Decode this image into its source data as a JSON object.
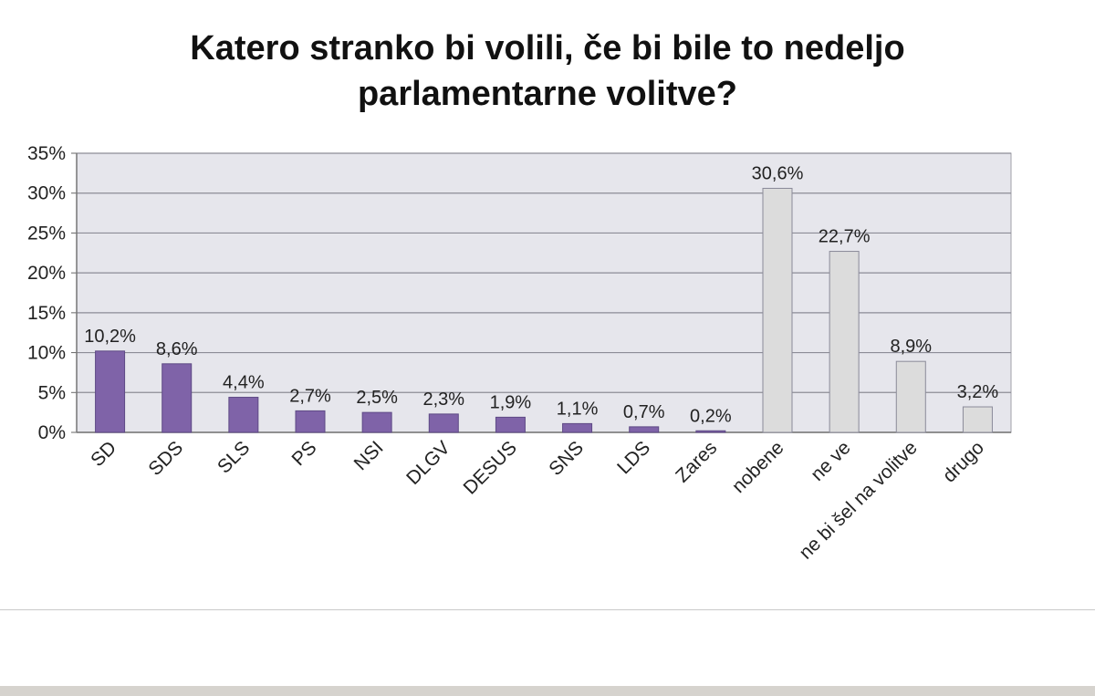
{
  "chart_data": {
    "type": "bar",
    "title": [
      "Katero stranko bi volili, če bi bile to nedeljo",
      "parlamentarne volitve?"
    ],
    "categories": [
      "SD",
      "SDS",
      "SLS",
      "PS",
      "NSI",
      "DLGV",
      "DESUS",
      "SNS",
      "LDS",
      "Zares",
      "nobene",
      "ne ve",
      "ne bi šel na volitve",
      "drugo"
    ],
    "values": [
      10.2,
      8.6,
      4.4,
      2.7,
      2.5,
      2.3,
      1.9,
      1.1,
      0.7,
      0.2,
      30.6,
      22.7,
      8.9,
      3.2
    ],
    "data_labels": [
      "10,2%",
      "8,6%",
      "4,4%",
      "2,7%",
      "2,5%",
      "2,3%",
      "1,9%",
      "1,1%",
      "0,7%",
      "0,2%",
      "30,6%",
      "22,7%",
      "8,9%",
      "3,2%"
    ],
    "ylim": [
      0,
      35
    ],
    "y_ticks": [
      0,
      5,
      10,
      15,
      20,
      25,
      30,
      35
    ],
    "y_tick_labels": [
      "0%",
      "5%",
      "10%",
      "15%",
      "20%",
      "25%",
      "30%",
      "35%"
    ],
    "grid": true,
    "plot_background": "#e6e6ec",
    "colors": {
      "party": "#7f63a8",
      "party_stroke": "#5e4a85",
      "other": "#dcdcdc",
      "other_stroke": "#8a8a99"
    },
    "bar_color_groups": [
      "party",
      "party",
      "party",
      "party",
      "party",
      "party",
      "party",
      "party",
      "party",
      "party",
      "other",
      "other",
      "other",
      "other"
    ]
  }
}
